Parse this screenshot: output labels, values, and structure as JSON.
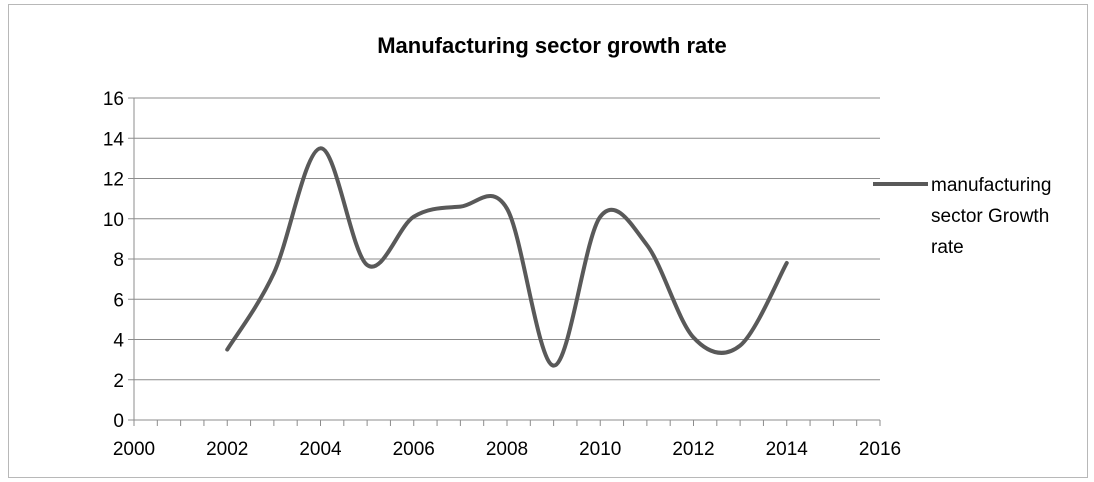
{
  "chart_data": {
    "type": "line",
    "title": "Manufacturing sector growth rate",
    "xlabel": "",
    "ylabel": "",
    "xlim": [
      2000,
      2016
    ],
    "ylim": [
      0,
      16
    ],
    "x_ticks": [
      2000,
      2002,
      2004,
      2006,
      2008,
      2010,
      2012,
      2014,
      2016
    ],
    "y_ticks": [
      0,
      2,
      4,
      6,
      8,
      10,
      12,
      14,
      16
    ],
    "grid": "horizontal",
    "legend_position": "right",
    "smooth": true,
    "series": [
      {
        "name": "manufacturing sector Growth rate",
        "color": "#595959",
        "x": [
          2002,
          2003,
          2004,
          2005,
          2006,
          2007,
          2008,
          2009,
          2010,
          2011,
          2012,
          2013,
          2014
        ],
        "y": [
          3.5,
          7.3,
          13.5,
          7.7,
          10.1,
          10.6,
          10.5,
          2.7,
          10.1,
          8.7,
          4.1,
          3.7,
          7.8
        ]
      }
    ]
  }
}
